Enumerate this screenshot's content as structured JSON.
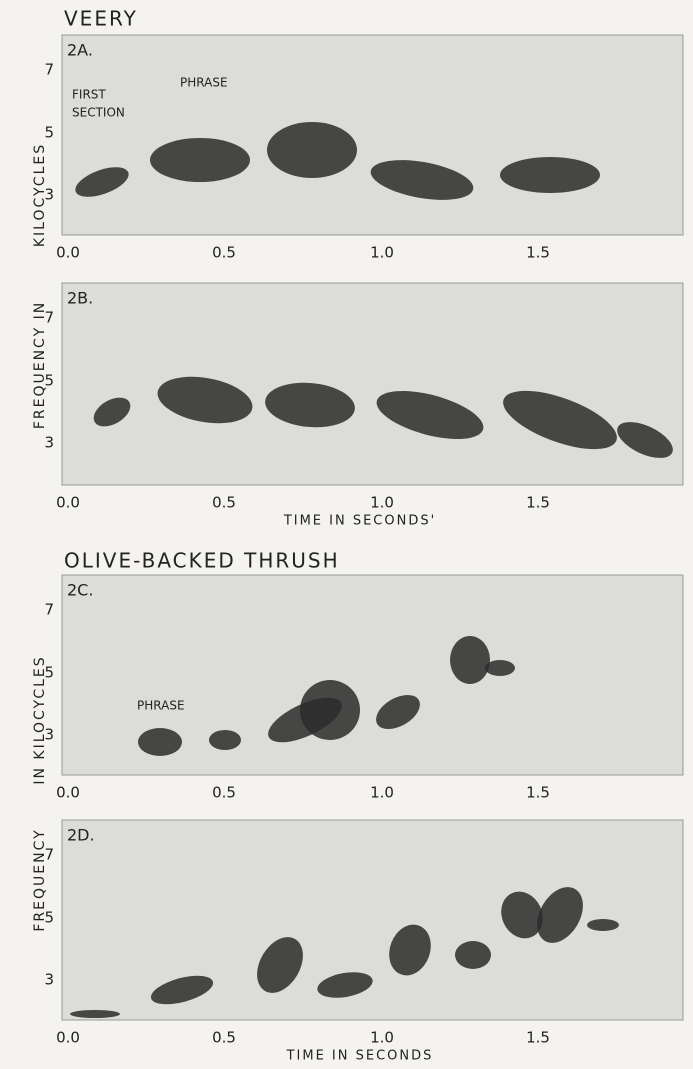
{
  "sections": [
    {
      "title": "VEERY",
      "ylabel": [
        "KILOCYCLES",
        "FREQUENCY IN"
      ],
      "panels": [
        {
          "label": "2A.",
          "annotations": [
            "FIRST",
            "SECTION",
            "PHRASE"
          ],
          "yticks": [
            "7",
            "5",
            "3"
          ],
          "xticks": [
            "0.0",
            "0.5",
            "1.0",
            "1.5"
          ]
        },
        {
          "label": "2B.",
          "yticks": [
            "7",
            "5",
            "3"
          ],
          "xticks": [
            "0.0",
            "0.5",
            "1.0",
            "1.5"
          ],
          "xlabel": "TIME IN SECONDS'"
        }
      ]
    },
    {
      "title": "OLIVE-BACKED THRUSH",
      "ylabel": [
        "IN KILOCYCLES",
        "FREQUENCY"
      ],
      "panels": [
        {
          "label": "2C.",
          "annotations": [
            "PHRASE"
          ],
          "yticks": [
            "7",
            "5",
            "3"
          ],
          "xticks": [
            "0.0",
            "0.5",
            "1.0",
            "1.5"
          ]
        },
        {
          "label": "2D.",
          "yticks": [
            "7",
            "5",
            "3"
          ],
          "xticks": [
            "0.0",
            "0.5",
            "1.0",
            "1.5"
          ],
          "xlabel": "TIME IN SECONDS"
        }
      ]
    }
  ]
}
